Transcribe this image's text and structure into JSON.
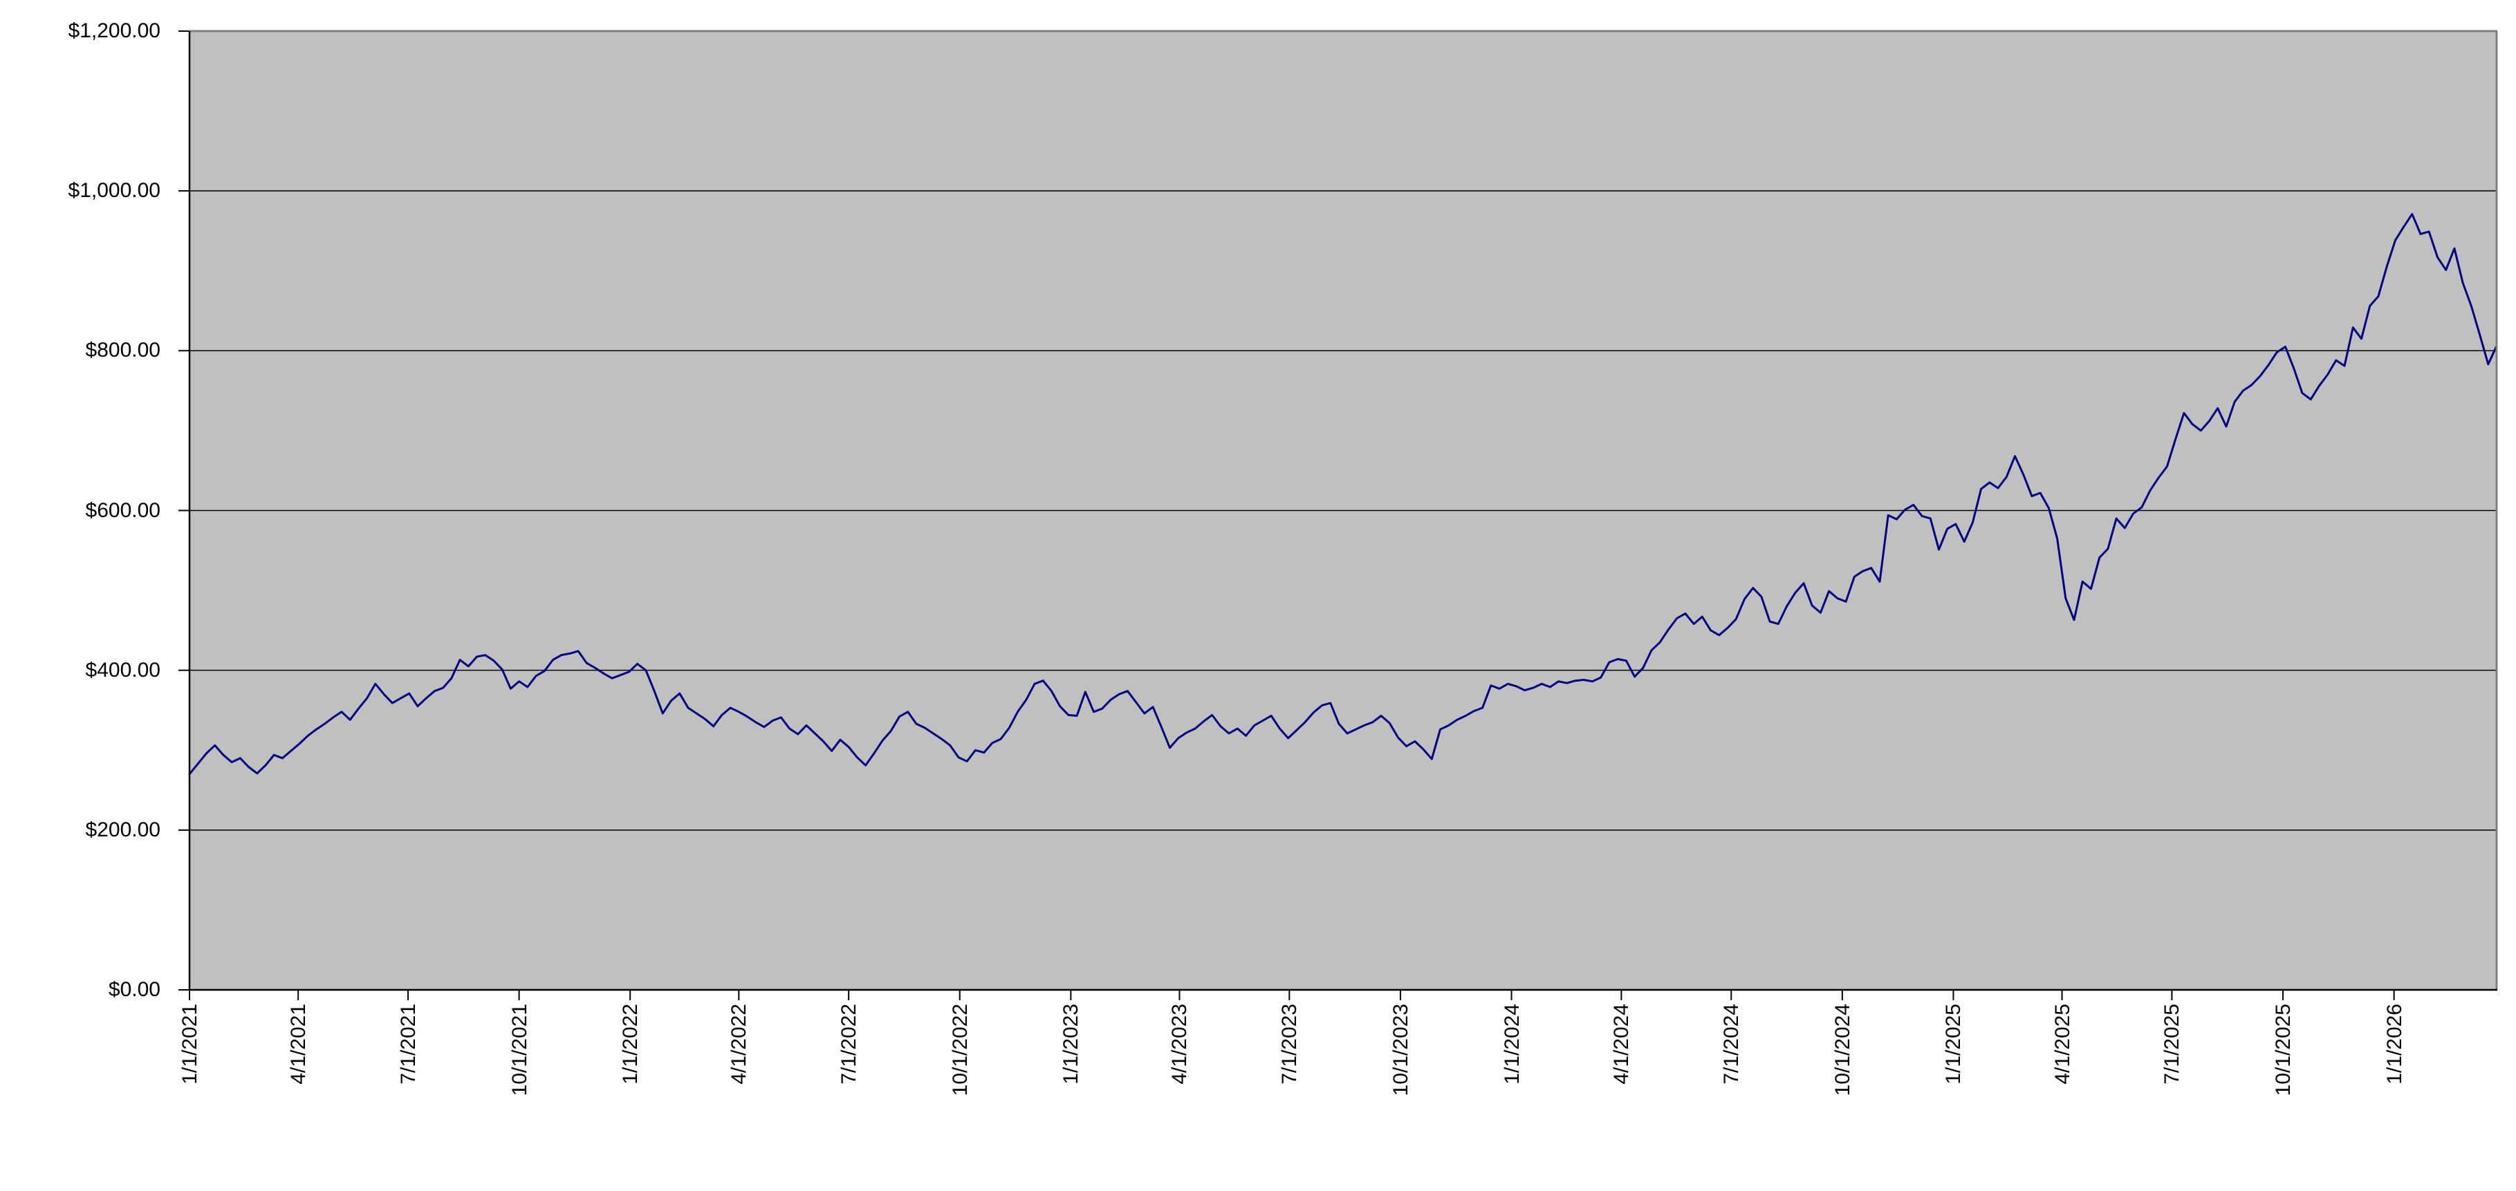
{
  "chart_data": {
    "type": "line",
    "title": "",
    "legend": "none",
    "grid": true,
    "plot_bg_color": "#C0C0C0",
    "plot_border_color": "#808080",
    "axis_color": "#000000",
    "gridline_color": "#000000",
    "line_color": "#000080",
    "ylabel": "",
    "xlabel": "",
    "ylim": [
      0,
      1200
    ],
    "y_gridline_interval": 200,
    "y_tick_labels": [
      "$0.00",
      "$200.00",
      "$400.00",
      "$600.00",
      "$800.00",
      "$1,000.00",
      "$1,200.00"
    ],
    "y_tick_values": [
      0,
      200,
      400,
      600,
      800,
      1000,
      1200
    ],
    "x_tick_labels": [
      "1/1/2021",
      "4/1/2021",
      "7/1/2021",
      "10/1/2021",
      "1/1/2022",
      "4/1/2022",
      "7/1/2022",
      "10/1/2022",
      "1/1/2023",
      "4/1/2023",
      "7/1/2023",
      "10/1/2023",
      "1/1/2024",
      "4/1/2024",
      "7/1/2024",
      "10/1/2024",
      "1/1/2025",
      "4/1/2025",
      "7/1/2025",
      "10/1/2025",
      "1/1/2026"
    ],
    "x_start_date": "1/1/2021",
    "x_end_date": "3/27/2026",
    "sample_step_days": 7,
    "values": [
      270,
      283,
      296,
      306,
      294,
      285,
      290,
      279,
      271,
      281,
      294,
      290,
      299,
      308,
      318,
      326,
      333,
      341,
      348,
      338,
      352,
      365,
      383,
      370,
      359,
      365,
      371,
      355,
      365,
      374,
      378,
      390,
      413,
      405,
      417,
      419,
      412,
      401,
      377,
      386,
      379,
      393,
      399,
      413,
      419,
      421,
      424,
      409,
      403,
      396,
      390,
      394,
      398,
      408,
      400,
      374,
      346,
      362,
      371,
      353,
      346,
      339,
      330,
      344,
      353,
      348,
      342,
      335,
      329,
      337,
      341,
      327,
      320,
      331,
      321,
      311,
      299,
      313,
      304,
      291,
      281,
      296,
      312,
      324,
      342,
      348,
      333,
      328,
      321,
      314,
      306,
      291,
      286,
      300,
      297,
      309,
      314,
      328,
      348,
      363,
      383,
      387,
      374,
      355,
      344,
      343,
      373,
      348,
      352,
      363,
      370,
      374,
      360,
      346,
      354,
      329,
      303,
      315,
      322,
      327,
      336,
      344,
      330,
      321,
      327,
      318,
      331,
      337,
      343,
      327,
      315,
      325,
      335,
      347,
      356,
      359,
      333,
      321,
      326,
      331,
      335,
      343,
      334,
      316,
      305,
      311,
      301,
      289,
      326,
      331,
      338,
      343,
      349,
      353,
      381,
      377,
      383,
      380,
      375,
      378,
      383,
      379,
      386,
      384,
      387,
      388,
      386,
      391,
      410,
      414,
      412,
      392,
      403,
      425,
      435,
      451,
      465,
      471,
      458,
      467,
      450,
      444,
      453,
      464,
      489,
      503,
      492,
      461,
      458,
      480,
      497,
      509,
      481,
      472,
      499,
      490,
      486,
      517,
      524,
      528,
      511,
      594,
      589,
      601,
      607,
      593,
      590,
      551,
      577,
      583,
      561,
      585,
      627,
      635,
      628,
      642,
      668,
      645,
      618,
      622,
      603,
      565,
      490,
      463,
      511,
      502,
      541,
      552,
      590,
      578,
      596,
      604,
      625,
      641,
      655,
      689,
      722,
      708,
      700,
      712,
      728,
      705,
      736,
      750,
      757,
      768,
      782,
      798,
      805,
      778,
      747,
      739,
      756,
      770,
      788,
      781,
      829,
      815,
      856,
      868,
      905,
      938,
      955,
      971,
      946,
      949,
      917,
      901,
      928,
      885,
      856,
      820,
      783,
      806
    ]
  }
}
